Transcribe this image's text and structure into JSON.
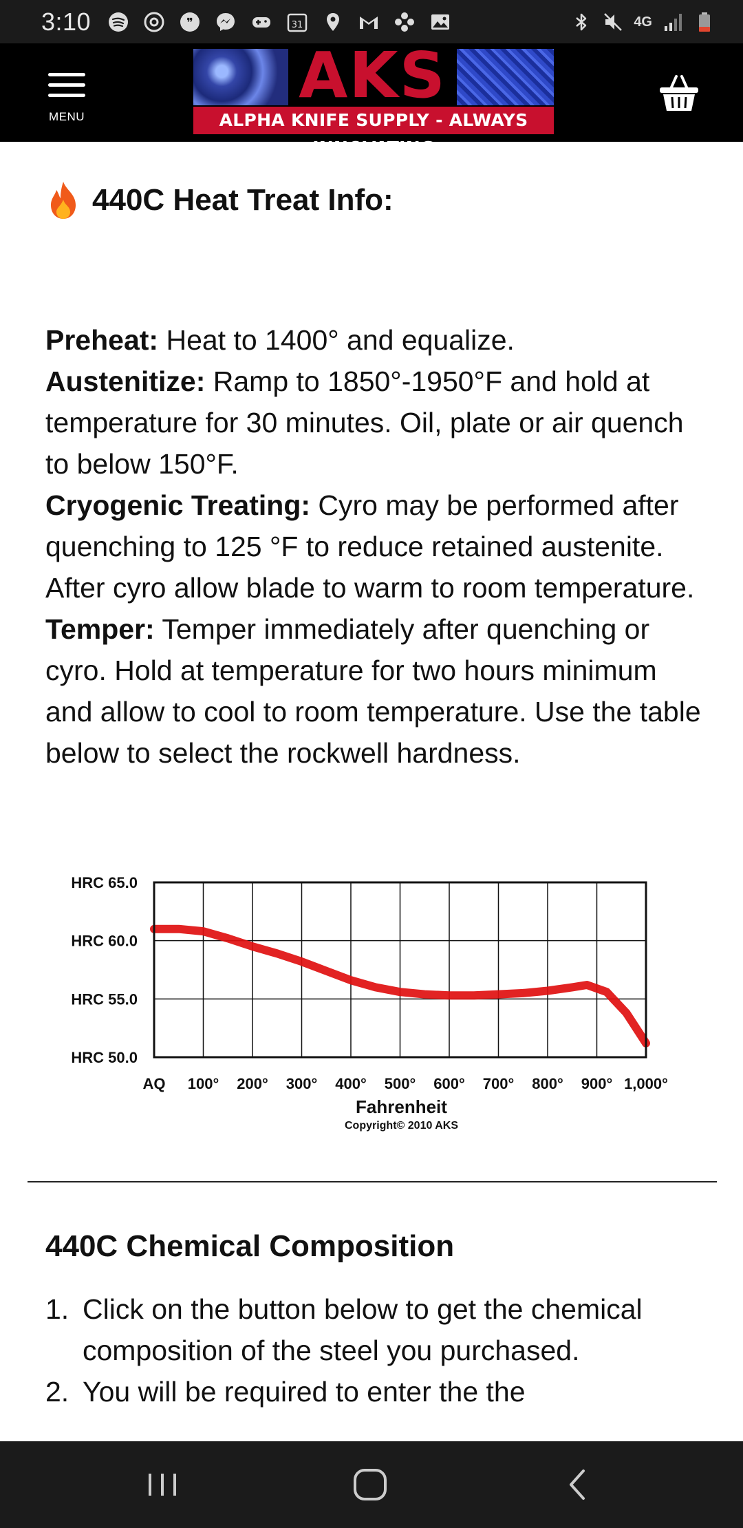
{
  "status_bar": {
    "time": "3:10",
    "network_label": "4G",
    "left_icons": [
      "spotify-icon",
      "sync-icon",
      "quote-icon",
      "messenger-icon",
      "gamepad-icon",
      "calendar-icon",
      "location-icon",
      "gmail-icon",
      "pinwheel-icon",
      "gallery-icon"
    ],
    "right_icons": [
      "bluetooth-icon",
      "mute-icon",
      "signal-icon",
      "battery-icon"
    ]
  },
  "header": {
    "menu_label": "MENU",
    "logo_brand": "AKS",
    "logo_tagline": "ALPHA KNIFE SUPPLY - ALWAYS INNOVATING",
    "brand_color": "#c8102e"
  },
  "heat_treat": {
    "title": "440C Heat Treat Info:",
    "steps": [
      {
        "label": "Preheat:",
        "text": " Heat to 1400° and equalize."
      },
      {
        "label": "Austenitize:",
        "text": " Ramp to 1850°-1950°F and hold at temperature for 30 minutes. Oil, plate or air quench to below 150°F."
      },
      {
        "label": "Cryogenic Treating:",
        "text": " Cyro may be performed after quenching to 125 °F to reduce retained austenite. After cyro allow blade to warm to room temperature."
      },
      {
        "label": "Temper:",
        "text": " Temper immediately after quenching or cyro. Hold at temperature for two hours minimum and allow to cool to room temperature. Use the table below to select the rockwell hardness."
      }
    ]
  },
  "chart_data": {
    "type": "line",
    "xlabel": "Fahrenheit",
    "footnote": "Copyright© 2010 AKS",
    "categories": [
      "AQ",
      "100°",
      "200°",
      "300°",
      "400°",
      "500°",
      "600°",
      "700°",
      "800°",
      "900°",
      "1,000°"
    ],
    "y_ticks": [
      "HRC 65.0",
      "HRC 60.0",
      "HRC 55.0",
      "HRC 50.0"
    ],
    "ylim": [
      50,
      65
    ],
    "grid": true,
    "line_color": "#e01010",
    "series": [
      {
        "x": [
          0,
          50,
          100,
          150,
          200,
          250,
          300,
          350,
          400,
          450,
          500,
          550,
          600,
          650,
          700,
          750,
          800,
          850,
          880,
          920,
          960,
          1000
        ],
        "y": [
          61.0,
          61.0,
          60.8,
          60.2,
          59.5,
          58.9,
          58.2,
          57.4,
          56.6,
          56.0,
          55.6,
          55.4,
          55.3,
          55.3,
          55.4,
          55.5,
          55.7,
          56.0,
          56.2,
          55.6,
          53.8,
          51.2
        ]
      }
    ]
  },
  "chemical": {
    "title": "440C Chemical Composition",
    "items": [
      {
        "num": "1.",
        "text": "Click on the button below to get the chemical composition of the steel you purchased."
      },
      {
        "num": "2.",
        "text": "You will be required to enter the the"
      }
    ]
  },
  "nav_bar": {
    "buttons": [
      "recent-apps-icon",
      "home-icon",
      "back-icon"
    ]
  }
}
